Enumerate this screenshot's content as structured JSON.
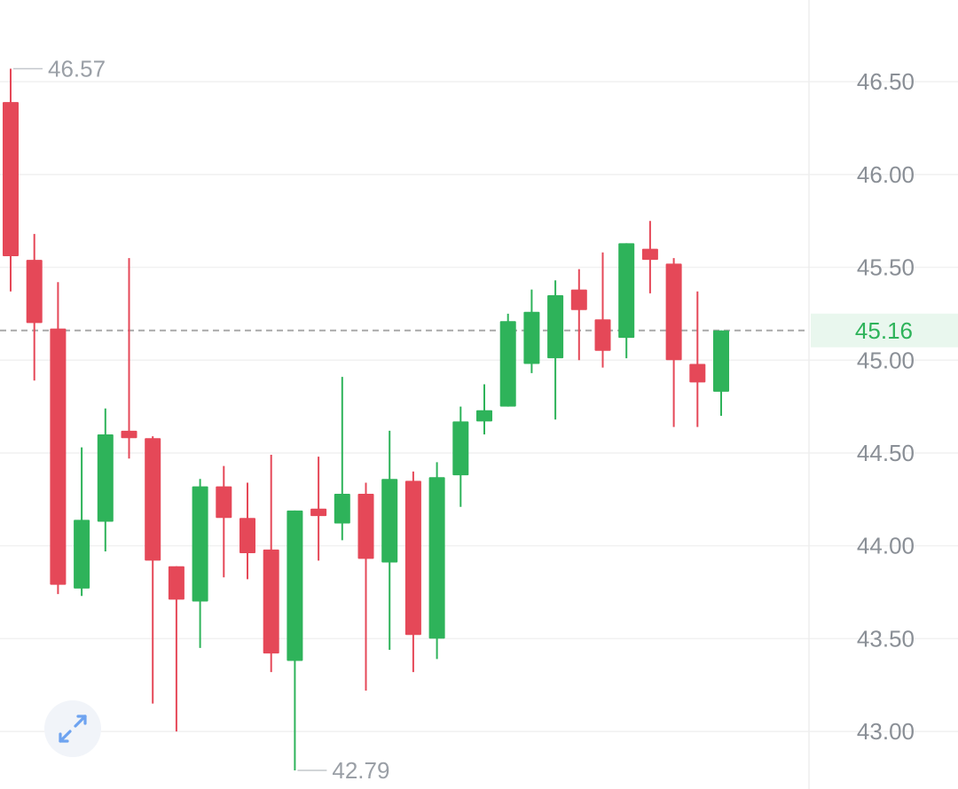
{
  "chart_data": {
    "type": "candlestick",
    "y_ticks": [
      "46.50",
      "46.00",
      "45.50",
      "45.00",
      "44.50",
      "44.00",
      "43.50",
      "43.00"
    ],
    "ylim": [
      42.69,
      46.94
    ],
    "grid": true,
    "y_axis_position": "right",
    "colors": {
      "up": "#2eb35a",
      "down": "#e54858",
      "last_price": "#2eb35a",
      "last_price_bg": "#e9f7ee"
    },
    "last_price": {
      "value": 45.16,
      "label": "45.16"
    },
    "high_marker": {
      "value": 46.57,
      "label": "46.57",
      "candle_index": 0
    },
    "low_marker": {
      "value": 42.79,
      "label": "42.79",
      "candle_index": 12
    },
    "candles": [
      {
        "open": 46.39,
        "close": 45.56,
        "high": 46.57,
        "low": 45.37
      },
      {
        "open": 45.54,
        "close": 45.2,
        "high": 45.68,
        "low": 44.89
      },
      {
        "open": 45.17,
        "close": 43.79,
        "high": 45.42,
        "low": 43.74
      },
      {
        "open": 43.77,
        "close": 44.14,
        "high": 44.53,
        "low": 43.73
      },
      {
        "open": 44.13,
        "close": 44.6,
        "high": 44.74,
        "low": 43.97
      },
      {
        "open": 44.62,
        "close": 44.58,
        "high": 45.55,
        "low": 44.47
      },
      {
        "open": 44.58,
        "close": 43.92,
        "high": 44.59,
        "low": 43.15
      },
      {
        "open": 43.89,
        "close": 43.71,
        "high": 43.89,
        "low": 43.0
      },
      {
        "open": 43.7,
        "close": 44.32,
        "high": 44.36,
        "low": 43.45
      },
      {
        "open": 44.32,
        "close": 44.15,
        "high": 44.43,
        "low": 43.83
      },
      {
        "open": 44.15,
        "close": 43.96,
        "high": 44.34,
        "low": 43.82
      },
      {
        "open": 43.98,
        "close": 43.42,
        "high": 44.49,
        "low": 43.32
      },
      {
        "open": 43.38,
        "close": 44.19,
        "high": 44.19,
        "low": 42.79
      },
      {
        "open": 44.2,
        "close": 44.16,
        "high": 44.48,
        "low": 43.92
      },
      {
        "open": 44.12,
        "close": 44.28,
        "high": 44.91,
        "low": 44.03
      },
      {
        "open": 44.28,
        "close": 43.93,
        "high": 44.34,
        "low": 43.22
      },
      {
        "open": 43.91,
        "close": 44.36,
        "high": 44.62,
        "low": 43.44
      },
      {
        "open": 44.35,
        "close": 43.52,
        "high": 44.4,
        "low": 43.32
      },
      {
        "open": 43.5,
        "close": 44.37,
        "high": 44.45,
        "low": 43.39
      },
      {
        "open": 44.38,
        "close": 44.67,
        "high": 44.75,
        "low": 44.21
      },
      {
        "open": 44.67,
        "close": 44.73,
        "high": 44.87,
        "low": 44.6
      },
      {
        "open": 44.75,
        "close": 45.21,
        "high": 45.25,
        "low": 44.75
      },
      {
        "open": 44.98,
        "close": 45.26,
        "high": 45.38,
        "low": 44.93
      },
      {
        "open": 45.01,
        "close": 45.35,
        "high": 45.43,
        "low": 44.68
      },
      {
        "open": 45.38,
        "close": 45.27,
        "high": 45.49,
        "low": 45.0
      },
      {
        "open": 45.22,
        "close": 45.05,
        "high": 45.58,
        "low": 44.96
      },
      {
        "open": 45.12,
        "close": 45.63,
        "high": 45.63,
        "low": 45.01
      },
      {
        "open": 45.6,
        "close": 45.54,
        "high": 45.75,
        "low": 45.36
      },
      {
        "open": 45.52,
        "close": 45.0,
        "high": 45.55,
        "low": 44.64
      },
      {
        "open": 44.98,
        "close": 44.88,
        "high": 45.37,
        "low": 44.64
      },
      {
        "open": 44.83,
        "close": 45.16,
        "high": 45.16,
        "low": 44.7
      }
    ]
  },
  "icons": {
    "expand": "expand-arrows-icon"
  }
}
